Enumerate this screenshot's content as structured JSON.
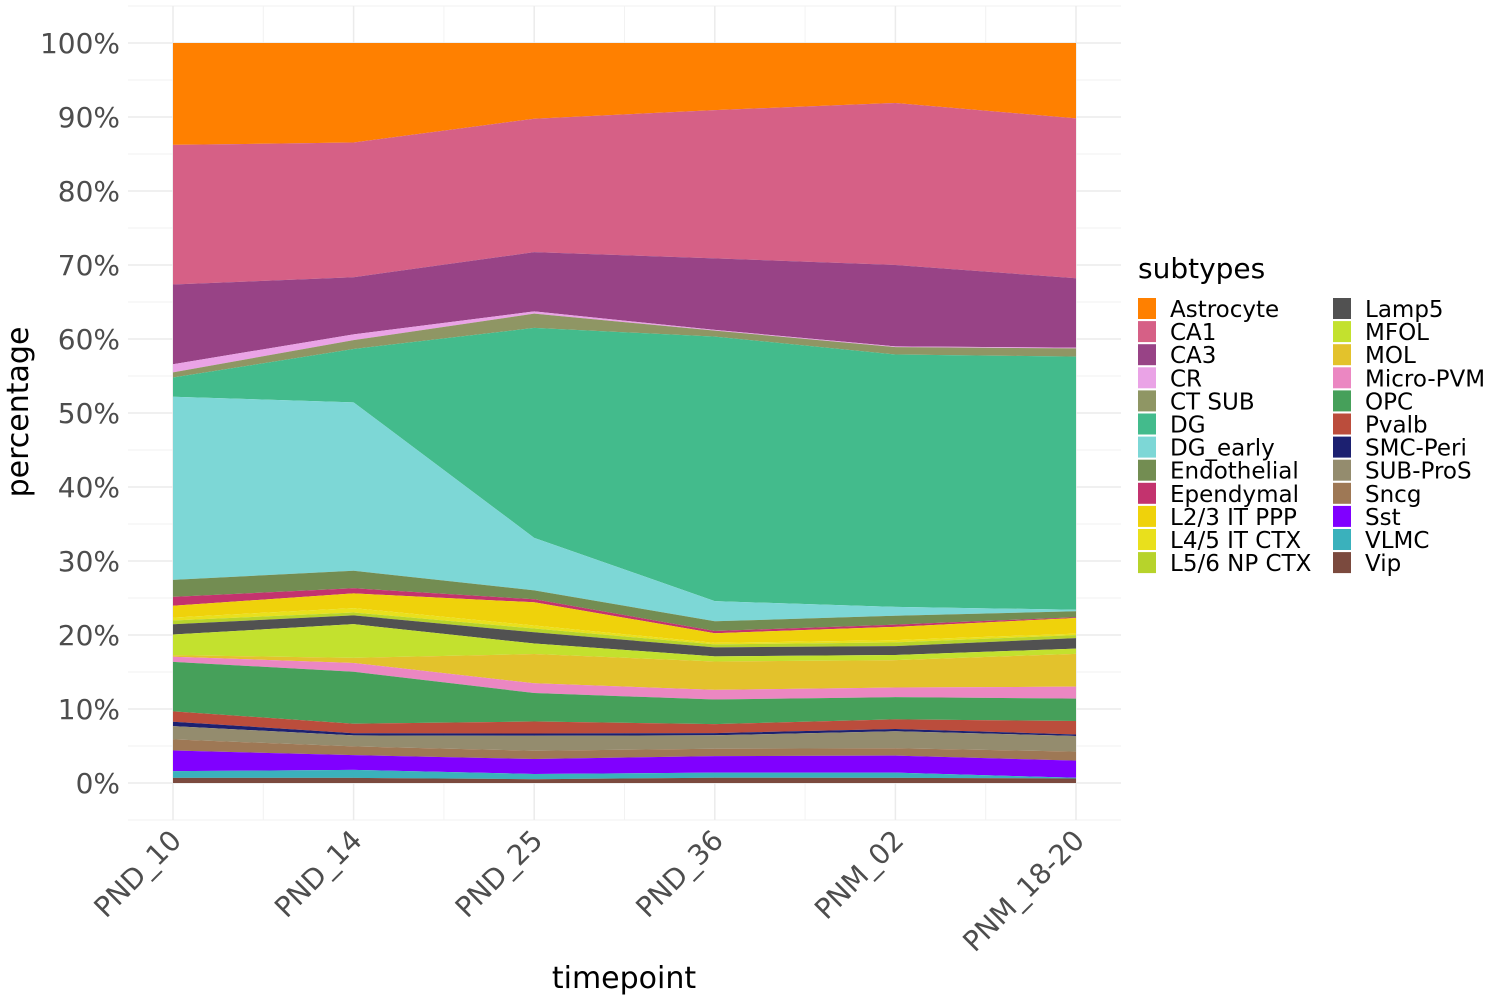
{
  "chart_data": {
    "type": "area",
    "stacked": true,
    "xlabel": "timepoint",
    "ylabel": "percentage",
    "ylim": [
      0,
      100
    ],
    "y_ticks": [
      "0%",
      "10%",
      "20%",
      "30%",
      "40%",
      "50%",
      "60%",
      "70%",
      "80%",
      "90%",
      "100%"
    ],
    "categories": [
      "PND_10",
      "PND_14",
      "PND_25",
      "PND_36",
      "PNM_02",
      "PNM_18-20"
    ],
    "legend_title": "subtypes",
    "legend_position": "right",
    "grid": true,
    "series": [
      {
        "name": "Astrocyte",
        "color": "#FF8000",
        "values": [
          13.8,
          13.6,
          10.1,
          9.0,
          8.1,
          10.1
        ]
      },
      {
        "name": "CA1",
        "color": "#D66086",
        "values": [
          18.9,
          18.4,
          17.8,
          19.9,
          21.9,
          21.4
        ]
      },
      {
        "name": "CA3",
        "color": "#984386",
        "values": [
          10.8,
          7.8,
          7.9,
          9.6,
          11.0,
          9.3
        ]
      },
      {
        "name": "CR",
        "color": "#EAA3E6",
        "values": [
          1.1,
          0.8,
          0.3,
          0.1,
          0.1,
          0.1
        ]
      },
      {
        "name": "CT SUB",
        "color": "#8F9664",
        "values": [
          0.7,
          1.2,
          1.9,
          0.8,
          1.0,
          1.1
        ]
      },
      {
        "name": "DG",
        "color": "#43BB8C",
        "values": [
          2.6,
          7.3,
          28.0,
          35.5,
          34.1,
          33.9
        ]
      },
      {
        "name": "DG_early",
        "color": "#7DD7D6",
        "values": [
          24.8,
          23.0,
          7.0,
          2.7,
          1.2,
          0.2
        ]
      },
      {
        "name": "Endothelial",
        "color": "#738D52",
        "values": [
          2.3,
          2.4,
          1.2,
          1.3,
          1.2,
          0.8
        ]
      },
      {
        "name": "Ependymal",
        "color": "#C3336E",
        "values": [
          1.2,
          0.7,
          0.4,
          0.3,
          0.3,
          0.1
        ]
      },
      {
        "name": "L2/3 IT PPP",
        "color": "#EFD20B",
        "values": [
          1.6,
          2.0,
          3.1,
          1.3,
          1.8,
          2.1
        ]
      },
      {
        "name": "L4/5 IT CTX",
        "color": "#E9E01C",
        "values": [
          0.4,
          0.6,
          0.4,
          0.2,
          0.3,
          0.2
        ]
      },
      {
        "name": "L5/6 NP CTX",
        "color": "#B7D32B",
        "values": [
          0.5,
          0.4,
          0.5,
          0.4,
          0.5,
          0.4
        ]
      },
      {
        "name": "Lamp5",
        "color": "#515151",
        "values": [
          1.4,
          1.2,
          1.5,
          1.2,
          1.2,
          1.4
        ]
      },
      {
        "name": "MFOL",
        "color": "#C3E12E",
        "values": [
          2.8,
          4.6,
          1.4,
          0.7,
          0.7,
          0.7
        ]
      },
      {
        "name": "MOL",
        "color": "#E3C22C",
        "values": [
          0.2,
          0.7,
          3.9,
          3.8,
          3.7,
          4.4
        ]
      },
      {
        "name": "Micro-PVM",
        "color": "#EB87C2",
        "values": [
          0.7,
          1.2,
          1.3,
          1.3,
          1.3,
          1.6
        ]
      },
      {
        "name": "OPC",
        "color": "#46A05A",
        "values": [
          6.7,
          7.1,
          3.8,
          3.3,
          3.0,
          3.0
        ]
      },
      {
        "name": "Pvalb",
        "color": "#BB4D3C",
        "values": [
          1.4,
          1.3,
          1.6,
          1.2,
          1.3,
          1.8
        ]
      },
      {
        "name": "SMC-Peri",
        "color": "#1C2070",
        "values": [
          0.6,
          0.3,
          0.3,
          0.3,
          0.3,
          0.2
        ]
      },
      {
        "name": "SUB-ProS",
        "color": "#948C6E",
        "values": [
          1.8,
          1.5,
          2.0,
          1.8,
          2.3,
          2.1
        ]
      },
      {
        "name": "Sncg",
        "color": "#9E7855",
        "values": [
          1.5,
          1.2,
          1.1,
          1.0,
          1.0,
          1.2
        ]
      },
      {
        "name": "Sst",
        "color": "#8000FF",
        "values": [
          2.8,
          2.0,
          2.0,
          2.2,
          2.3,
          2.3
        ]
      },
      {
        "name": "VLMC",
        "color": "#3AB1BC",
        "values": [
          0.9,
          1.1,
          0.7,
          0.7,
          0.7,
          0.1
        ]
      },
      {
        "name": "Vip",
        "color": "#7B4A3E",
        "values": [
          0.7,
          0.7,
          0.5,
          0.7,
          0.7,
          0.6
        ]
      }
    ]
  }
}
